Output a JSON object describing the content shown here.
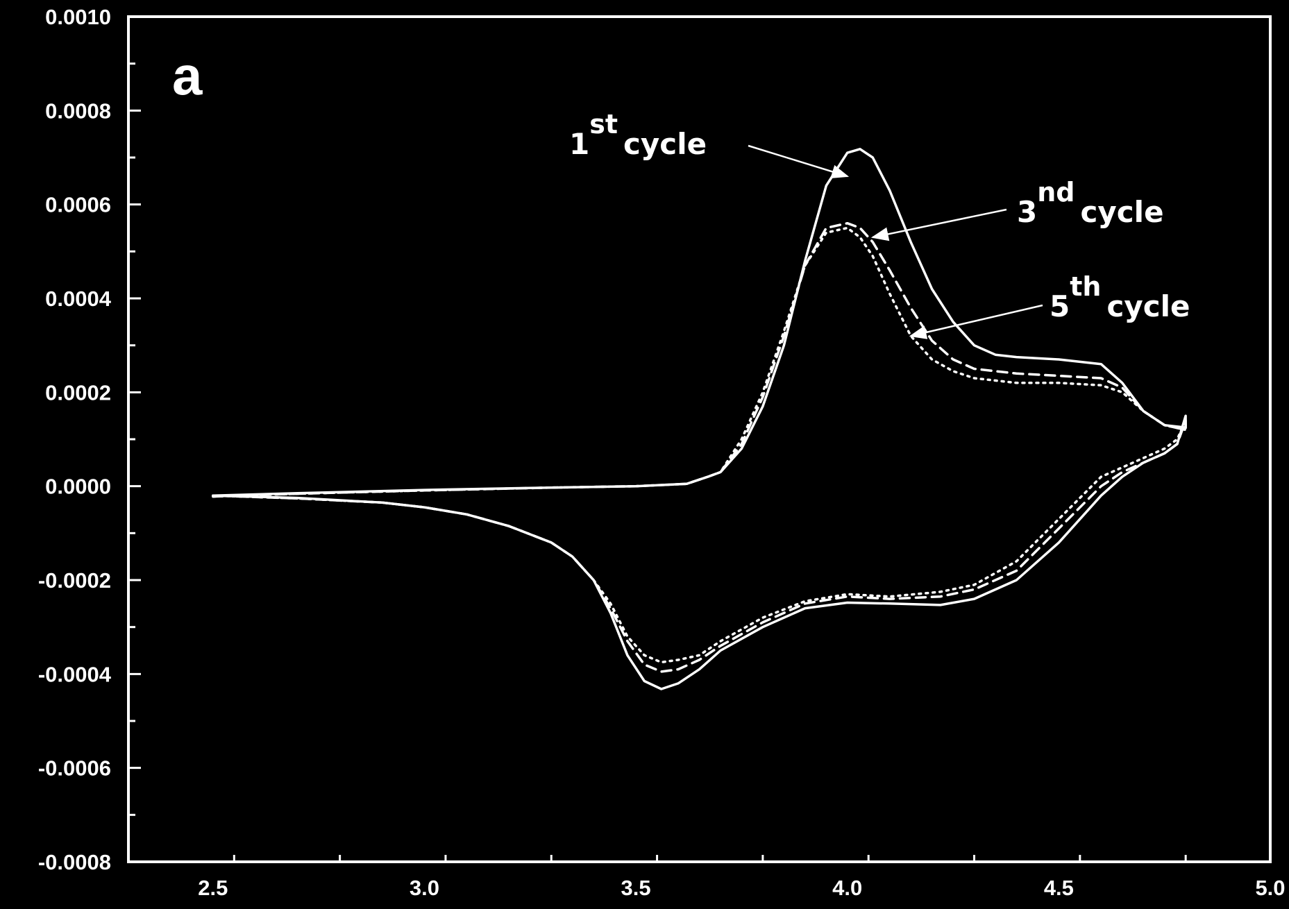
{
  "chart_data": {
    "type": "line",
    "title": "",
    "xlabel": "",
    "ylabel": "",
    "panel_label": "a",
    "xlim": [
      2.3,
      5.0
    ],
    "ylim": [
      -0.0008,
      0.001
    ],
    "xticks": [
      "2.5",
      "3.0",
      "3.5",
      "4.0",
      "4.5",
      "5.0"
    ],
    "yticks": [
      "0.0010",
      "0.0008",
      "0.0006",
      "0.0004",
      "0.0002",
      "0.0000",
      "-0.0002",
      "-0.0004",
      "-0.0006",
      "-0.0008"
    ],
    "grid": false,
    "background": "#000000",
    "line_color": "#ffffff",
    "series": [
      {
        "style": "solid",
        "x": [
          2.5,
          2.7,
          3.0,
          3.3,
          3.5,
          3.62,
          3.67,
          3.7,
          3.75,
          3.8,
          3.85,
          3.9,
          3.95,
          4.0,
          4.03,
          4.06,
          4.1,
          4.15,
          4.2,
          4.25,
          4.3,
          4.35,
          4.4,
          4.5,
          4.6,
          4.65,
          4.7,
          4.75,
          4.8,
          4.8,
          4.78,
          4.75,
          4.7,
          4.65,
          4.6,
          4.5,
          4.4,
          4.3,
          4.22,
          4.1,
          4.0,
          3.9,
          3.8,
          3.7,
          3.65,
          3.6,
          3.56,
          3.52,
          3.48,
          3.44,
          3.4,
          3.35,
          3.3,
          3.2,
          3.1,
          3.0,
          2.9,
          2.7,
          2.5
        ],
        "y": [
          -2e-05,
          -1.5e-05,
          -8e-06,
          -3e-06,
          0.0,
          5e-06,
          2e-05,
          3e-05,
          8e-05,
          0.00017,
          0.0003,
          0.00048,
          0.00064,
          0.00071,
          0.000718,
          0.0007,
          0.00063,
          0.00052,
          0.00042,
          0.00035,
          0.0003,
          0.00028,
          0.000275,
          0.00027,
          0.00026,
          0.00022,
          0.00016,
          0.00013,
          0.000125,
          0.00015,
          9e-05,
          7e-05,
          5e-05,
          2e-05,
          -2e-05,
          -0.00012,
          -0.0002,
          -0.00024,
          -0.000253,
          -0.00025,
          -0.000248,
          -0.00026,
          -0.0003,
          -0.00035,
          -0.00039,
          -0.00042,
          -0.000432,
          -0.000415,
          -0.00036,
          -0.00027,
          -0.0002,
          -0.00015,
          -0.00012,
          -8.5e-05,
          -6e-05,
          -4.5e-05,
          -3.5e-05,
          -2.5e-05,
          -2e-05
        ]
      },
      {
        "style": "dashed",
        "x": [
          2.5,
          2.7,
          3.0,
          3.3,
          3.5,
          3.62,
          3.67,
          3.7,
          3.75,
          3.8,
          3.85,
          3.9,
          3.95,
          4.0,
          4.03,
          4.06,
          4.1,
          4.15,
          4.2,
          4.25,
          4.3,
          4.35,
          4.4,
          4.5,
          4.6,
          4.65,
          4.7,
          4.75,
          4.8,
          4.8,
          4.78,
          4.75,
          4.7,
          4.65,
          4.6,
          4.5,
          4.4,
          4.3,
          4.22,
          4.1,
          4.0,
          3.9,
          3.8,
          3.7,
          3.65,
          3.6,
          3.56,
          3.52,
          3.48,
          3.44,
          3.4,
          3.35,
          3.3,
          3.2,
          3.1,
          3.0,
          2.9,
          2.7,
          2.5
        ],
        "y": [
          -2.2e-05,
          -1.6e-05,
          -9e-06,
          -3e-06,
          0.0,
          5e-06,
          2e-05,
          3e-05,
          9e-05,
          0.00019,
          0.00032,
          0.00047,
          0.00055,
          0.00056,
          0.00055,
          0.00052,
          0.00046,
          0.00038,
          0.00031,
          0.00027,
          0.00025,
          0.000245,
          0.00024,
          0.000235,
          0.00023,
          0.00021,
          0.00016,
          0.00013,
          0.00012,
          0.00014,
          9e-05,
          7e-05,
          5e-05,
          3e-05,
          0.0,
          -9e-05,
          -0.00018,
          -0.00022,
          -0.000235,
          -0.00024,
          -0.000235,
          -0.00025,
          -0.00029,
          -0.00034,
          -0.00037,
          -0.00039,
          -0.000395,
          -0.00038,
          -0.00033,
          -0.00026,
          -0.0002,
          -0.00015,
          -0.00012,
          -8.5e-05,
          -6e-05,
          -4.5e-05,
          -3.5e-05,
          -2.6e-05,
          -2e-05
        ]
      },
      {
        "style": "dotted",
        "x": [
          2.5,
          2.7,
          3.0,
          3.3,
          3.5,
          3.62,
          3.67,
          3.7,
          3.75,
          3.8,
          3.85,
          3.9,
          3.95,
          4.0,
          4.03,
          4.06,
          4.1,
          4.15,
          4.2,
          4.25,
          4.3,
          4.35,
          4.4,
          4.5,
          4.6,
          4.65,
          4.7,
          4.75,
          4.8,
          4.8,
          4.78,
          4.75,
          4.7,
          4.65,
          4.6,
          4.5,
          4.4,
          4.3,
          4.22,
          4.1,
          4.0,
          3.9,
          3.8,
          3.7,
          3.65,
          3.6,
          3.56,
          3.52,
          3.48,
          3.44,
          3.4,
          3.35,
          3.3,
          3.2,
          3.1,
          3.0,
          2.9,
          2.7,
          2.5
        ],
        "y": [
          -2.2e-05,
          -1.6e-05,
          -9e-06,
          -3e-06,
          0.0,
          5e-06,
          2e-05,
          3e-05,
          0.0001,
          0.0002,
          0.00033,
          0.00047,
          0.00054,
          0.00055,
          0.00053,
          0.00049,
          0.00041,
          0.00032,
          0.00027,
          0.000245,
          0.00023,
          0.000225,
          0.00022,
          0.00022,
          0.000215,
          0.0002,
          0.00016,
          0.00013,
          0.00012,
          0.00014,
          0.0001,
          8e-05,
          6e-05,
          4e-05,
          2e-05,
          -7e-05,
          -0.00016,
          -0.00021,
          -0.000225,
          -0.000235,
          -0.00023,
          -0.000245,
          -0.00028,
          -0.00033,
          -0.00036,
          -0.00037,
          -0.000375,
          -0.00036,
          -0.00032,
          -0.00025,
          -0.0002,
          -0.00015,
          -0.00012,
          -8.5e-05,
          -6e-05,
          -4.5e-05,
          -3.5e-05,
          -2.6e-05,
          -2e-05
        ]
      }
    ],
    "annotations": [
      {
        "base": "1",
        "sup": "st",
        "text": "cycle",
        "target": [
          4.0,
          0.00066
        ]
      },
      {
        "base": "3",
        "sup": "nd",
        "text": "cycle",
        "target": [
          4.06,
          0.00053
        ]
      },
      {
        "base": "5",
        "sup": "th",
        "text": "cycle",
        "target": [
          4.15,
          0.00032
        ]
      }
    ]
  }
}
